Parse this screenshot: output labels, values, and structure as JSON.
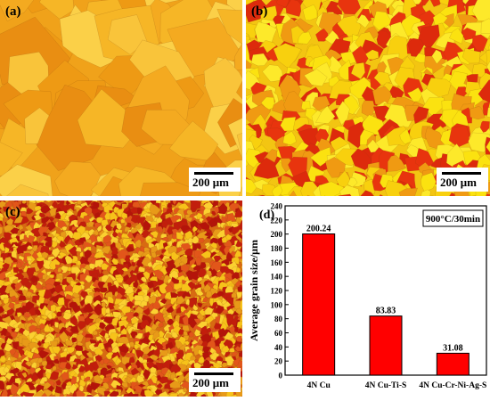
{
  "panels": {
    "a": {
      "label": "(a)",
      "scale": "200 μm",
      "base": "#f0a21a",
      "palette": [
        "#f6b626",
        "#fbd048",
        "#ee9a14",
        "#f4aa20",
        "#f9c43a",
        "#e98e12"
      ]
    },
    "b": {
      "label": "(b)",
      "scale": "200 μm",
      "base": "#f3c512",
      "palette": [
        "#e8340e",
        "#fbe210",
        "#f09a12",
        "#dd2a0c",
        "#f8d00e",
        "#fde92a"
      ]
    },
    "c": {
      "label": "(c)",
      "scale": "200 μm",
      "base": "#d86a12",
      "palette": [
        "#c21e0c",
        "#f7c21a",
        "#e89a18",
        "#b5140a",
        "#fbd030",
        "#e2561a"
      ]
    }
  },
  "chart_data": {
    "type": "bar",
    "panel_label": "(d)",
    "categories": [
      "4N Cu",
      "4N Cu-Ti-S",
      "4N Cu-Cr-Ni-Ag-S"
    ],
    "values": [
      200.24,
      83.83,
      31.08
    ],
    "value_labels": [
      "200.24",
      "83.83",
      "31.08"
    ],
    "annotation": "900°C/30min",
    "ylabel": "Average grain size/μm",
    "xlabel": "",
    "ylim": [
      0,
      240
    ],
    "yticks": [
      0,
      20,
      40,
      60,
      80,
      100,
      120,
      140,
      160,
      180,
      200,
      220,
      240
    ],
    "bar_color": "#ff0000",
    "grid": false
  }
}
